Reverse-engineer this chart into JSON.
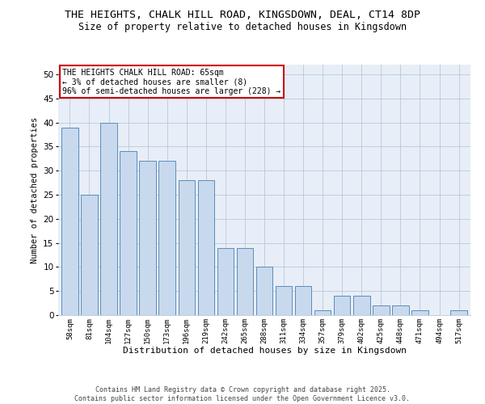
{
  "title_line1": "THE HEIGHTS, CHALK HILL ROAD, KINGSDOWN, DEAL, CT14 8DP",
  "title_line2": "Size of property relative to detached houses in Kingsdown",
  "xlabel": "Distribution of detached houses by size in Kingsdown",
  "ylabel": "Number of detached properties",
  "bar_color": "#c8d9ee",
  "bar_edge_color": "#5b8db8",
  "background_color": "#e8eef7",
  "categories": [
    "58sqm",
    "81sqm",
    "104sqm",
    "127sqm",
    "150sqm",
    "173sqm",
    "196sqm",
    "219sqm",
    "242sqm",
    "265sqm",
    "288sqm",
    "311sqm",
    "334sqm",
    "357sqm",
    "379sqm",
    "402sqm",
    "425sqm",
    "448sqm",
    "471sqm",
    "494sqm",
    "517sqm"
  ],
  "values": [
    39,
    25,
    40,
    34,
    32,
    32,
    28,
    28,
    14,
    14,
    10,
    6,
    6,
    1,
    4,
    4,
    2,
    2,
    1,
    0,
    1
  ],
  "ylim": [
    0,
    52
  ],
  "yticks": [
    0,
    5,
    10,
    15,
    20,
    25,
    30,
    35,
    40,
    45,
    50
  ],
  "annotation_title": "THE HEIGHTS CHALK HILL ROAD: 65sqm",
  "annotation_line2": "← 3% of detached houses are smaller (8)",
  "annotation_line3": "96% of semi-detached houses are larger (228) →",
  "annotation_box_color": "#ffffff",
  "annotation_box_edge": "#cc0000",
  "footer_line1": "Contains HM Land Registry data © Crown copyright and database right 2025.",
  "footer_line2": "Contains public sector information licensed under the Open Government Licence v3.0."
}
